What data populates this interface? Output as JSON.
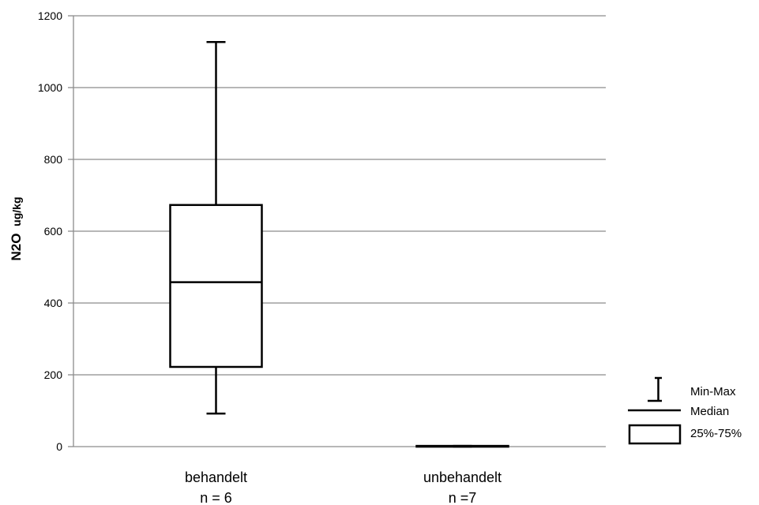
{
  "chart_data": {
    "type": "boxplot",
    "ylabel_main": "N2O",
    "ylabel_unit": "ug/kg",
    "ylim": [
      0,
      1200
    ],
    "yticks": [
      0,
      200,
      400,
      600,
      800,
      1000,
      1200
    ],
    "grid": true,
    "categories": [
      {
        "label": "behandelt",
        "n_label": "n = 6",
        "min": 92,
        "q1": 222,
        "median": 458,
        "q3": 673,
        "max": 1127
      },
      {
        "label": "unbehandelt",
        "n_label": "n =7",
        "min": 0,
        "q1": 0,
        "median": 1,
        "q3": 2,
        "max": 2
      }
    ],
    "legend": {
      "position": "bottom-right",
      "items": [
        {
          "symbol": "whisker",
          "label": "Min-Max"
        },
        {
          "symbol": "line",
          "label": "Median"
        },
        {
          "symbol": "box",
          "label": "25%-75%"
        }
      ]
    },
    "colors": {
      "grid": "#8c8c8c",
      "box": "#000000"
    }
  }
}
